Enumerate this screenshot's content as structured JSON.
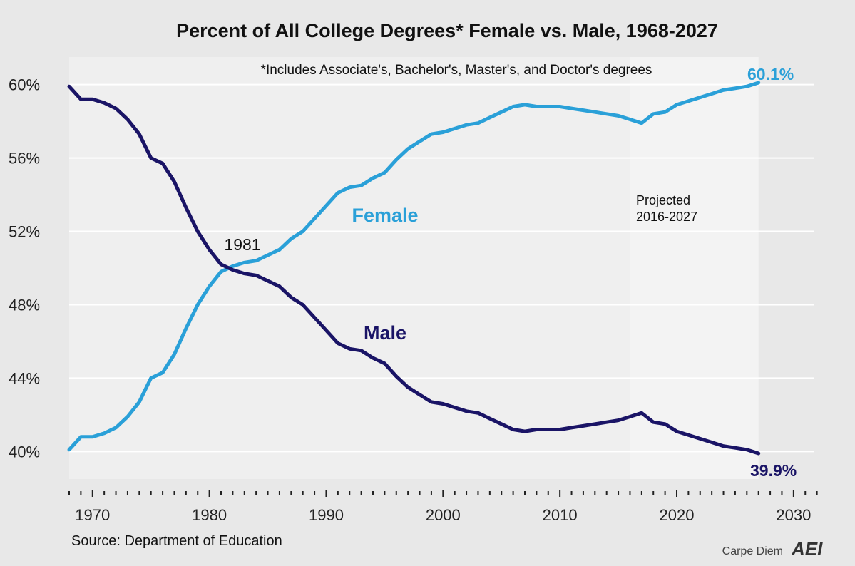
{
  "chart_data": {
    "type": "line",
    "title": "Percent of All College Degrees* Female vs. Male, 1968-2027",
    "note": "*Includes Associate's, Bachelor's, Master's, and Doctor's degrees",
    "xlabel": "",
    "ylabel": "",
    "xlim": [
      1968,
      2033
    ],
    "ylim": [
      38.5,
      61.5
    ],
    "x_ticks": [
      1970,
      1980,
      1990,
      2000,
      2010,
      2020,
      2030
    ],
    "x_tick_labels": [
      "1970",
      "1980",
      "1990",
      "2000",
      "2010",
      "2020",
      "2030"
    ],
    "y_ticks": [
      40,
      44,
      48,
      52,
      56,
      60
    ],
    "y_tick_labels": [
      "40%",
      "44%",
      "48%",
      "52%",
      "56%",
      "60%"
    ],
    "grid": true,
    "series": [
      {
        "name": "Female",
        "color": "#2aa0d8",
        "x": [
          1968,
          1969,
          1970,
          1971,
          1972,
          1973,
          1974,
          1975,
          1976,
          1977,
          1978,
          1979,
          1980,
          1981,
          1982,
          1983,
          1984,
          1985,
          1986,
          1987,
          1988,
          1989,
          1990,
          1991,
          1992,
          1993,
          1994,
          1995,
          1996,
          1997,
          1998,
          1999,
          2000,
          2001,
          2002,
          2003,
          2004,
          2005,
          2006,
          2007,
          2008,
          2009,
          2010,
          2011,
          2012,
          2013,
          2014,
          2015,
          2016,
          2017,
          2018,
          2019,
          2020,
          2021,
          2022,
          2023,
          2024,
          2025,
          2026,
          2027
        ],
        "values": [
          40.1,
          40.8,
          40.8,
          41.0,
          41.3,
          41.9,
          42.7,
          44.0,
          44.3,
          45.3,
          46.7,
          48.0,
          49.0,
          49.8,
          50.1,
          50.3,
          50.4,
          50.7,
          51.0,
          51.6,
          52.0,
          52.7,
          53.4,
          54.1,
          54.4,
          54.5,
          54.9,
          55.2,
          55.9,
          56.5,
          56.9,
          57.3,
          57.4,
          57.6,
          57.8,
          57.9,
          58.2,
          58.5,
          58.8,
          58.9,
          58.8,
          58.8,
          58.8,
          58.7,
          58.6,
          58.5,
          58.4,
          58.3,
          58.1,
          57.9,
          58.4,
          58.5,
          58.9,
          59.1,
          59.3,
          59.5,
          59.7,
          59.8,
          59.9,
          60.1
        ]
      },
      {
        "name": "Male",
        "color": "#1a1466",
        "x": [
          1968,
          1969,
          1970,
          1971,
          1972,
          1973,
          1974,
          1975,
          1976,
          1977,
          1978,
          1979,
          1980,
          1981,
          1982,
          1983,
          1984,
          1985,
          1986,
          1987,
          1988,
          1989,
          1990,
          1991,
          1992,
          1993,
          1994,
          1995,
          1996,
          1997,
          1998,
          1999,
          2000,
          2001,
          2002,
          2003,
          2004,
          2005,
          2006,
          2007,
          2008,
          2009,
          2010,
          2011,
          2012,
          2013,
          2014,
          2015,
          2016,
          2017,
          2018,
          2019,
          2020,
          2021,
          2022,
          2023,
          2024,
          2025,
          2026,
          2027
        ],
        "values": [
          59.9,
          59.2,
          59.2,
          59.0,
          58.7,
          58.1,
          57.3,
          56.0,
          55.7,
          54.7,
          53.3,
          52.0,
          51.0,
          50.2,
          49.9,
          49.7,
          49.6,
          49.3,
          49.0,
          48.4,
          48.0,
          47.3,
          46.6,
          45.9,
          45.6,
          45.5,
          45.1,
          44.8,
          44.1,
          43.5,
          43.1,
          42.7,
          42.6,
          42.4,
          42.2,
          42.1,
          41.8,
          41.5,
          41.2,
          41.1,
          41.2,
          41.2,
          41.2,
          41.3,
          41.4,
          41.5,
          41.6,
          41.7,
          41.9,
          42.1,
          41.6,
          41.5,
          41.1,
          40.9,
          40.7,
          40.5,
          40.3,
          40.2,
          40.1,
          39.9
        ]
      }
    ],
    "series_labels": {
      "female": "Female",
      "male": "Male"
    },
    "end_labels": {
      "female": "60.1%",
      "male": "39.9%"
    },
    "annotations": {
      "crossover": "1981",
      "projected_line1": "Projected",
      "projected_line2": "2016-2027",
      "projected_start": 2016,
      "projected_end": 2027
    },
    "source": "Source: Department of Education",
    "credit": "Carpe Diem",
    "logo_text": "AEI"
  }
}
